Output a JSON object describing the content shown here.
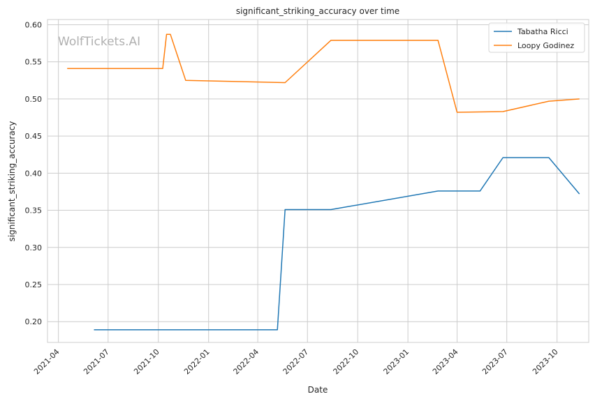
{
  "chart_data": {
    "type": "line",
    "title": "significant_striking_accuracy over time",
    "xlabel": "Date",
    "ylabel": "significant_striking_accuracy",
    "watermark": "WolfTickets.AI",
    "x_tick_labels": [
      "2021-04",
      "2021-07",
      "2021-10",
      "2022-01",
      "2022-04",
      "2022-07",
      "2022-10",
      "2023-01",
      "2023-04",
      "2023-07",
      "2023-10"
    ],
    "y_tick_labels": [
      "0.20",
      "0.25",
      "0.30",
      "0.35",
      "0.40",
      "0.45",
      "0.50",
      "0.55",
      "0.60"
    ],
    "ylim": [
      0.172,
      0.607
    ],
    "xlim": [
      "2021-03-12",
      "2023-11-28"
    ],
    "grid": true,
    "legend_position": "top-right",
    "series": [
      {
        "name": "Tabatha Ricci",
        "color": "#1f77b4",
        "points": [
          {
            "x": "2021-06-05",
            "y": 0.189
          },
          {
            "x": "2022-05-07",
            "y": 0.189
          },
          {
            "x": "2022-05-21",
            "y": 0.351
          },
          {
            "x": "2022-08-13",
            "y": 0.351
          },
          {
            "x": "2023-02-25",
            "y": 0.376
          },
          {
            "x": "2023-05-13",
            "y": 0.376
          },
          {
            "x": "2023-06-24",
            "y": 0.421
          },
          {
            "x": "2023-09-16",
            "y": 0.421
          },
          {
            "x": "2023-11-11",
            "y": 0.372
          }
        ]
      },
      {
        "name": "Loopy Godinez",
        "color": "#ff7f0e",
        "points": [
          {
            "x": "2021-04-17",
            "y": 0.541
          },
          {
            "x": "2021-10-09",
            "y": 0.541
          },
          {
            "x": "2021-10-16",
            "y": 0.587
          },
          {
            "x": "2021-10-23",
            "y": 0.587
          },
          {
            "x": "2021-11-20",
            "y": 0.525
          },
          {
            "x": "2022-05-21",
            "y": 0.522
          },
          {
            "x": "2022-08-13",
            "y": 0.579
          },
          {
            "x": "2023-02-25",
            "y": 0.579
          },
          {
            "x": "2023-04-01",
            "y": 0.482
          },
          {
            "x": "2023-06-24",
            "y": 0.483
          },
          {
            "x": "2023-09-16",
            "y": 0.497
          },
          {
            "x": "2023-11-11",
            "y": 0.5
          }
        ]
      }
    ]
  }
}
